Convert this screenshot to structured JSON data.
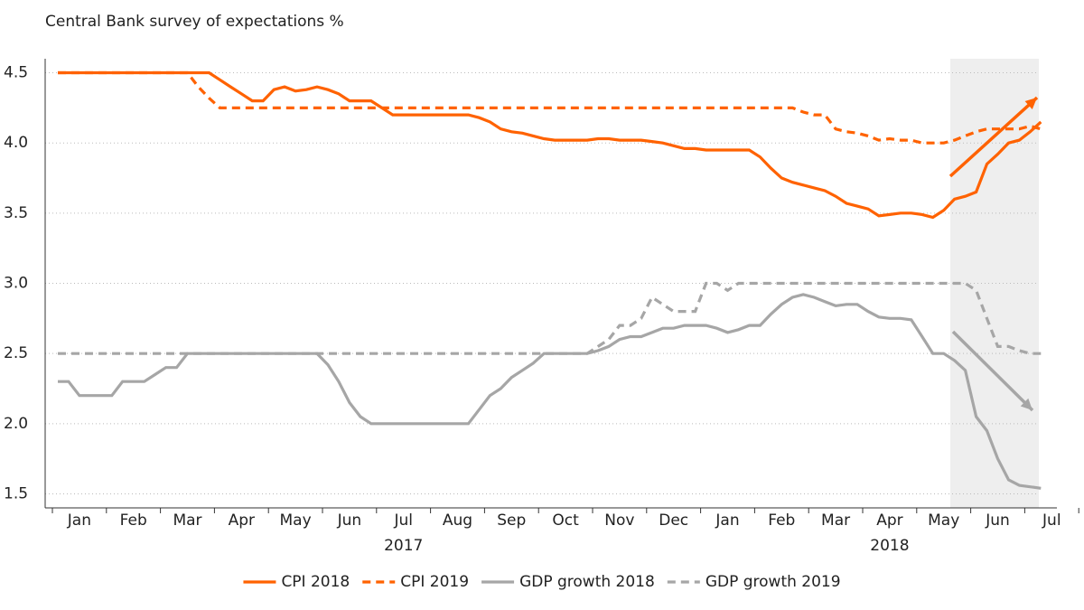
{
  "chart_data": {
    "type": "line",
    "title": "Central Bank survey of expectations %",
    "categories": [
      null,
      null,
      "Jan",
      null,
      null,
      null,
      null,
      "Feb",
      null,
      null,
      null,
      null,
      "Mar",
      null,
      null,
      null,
      null,
      "Apr",
      null,
      null,
      null,
      null,
      "May",
      null,
      null,
      null,
      null,
      "Jun",
      null,
      null,
      null,
      null,
      "Jul",
      null,
      null,
      null,
      null,
      "Aug",
      null,
      null,
      null,
      null,
      "Sep",
      null,
      null,
      null,
      null,
      "Oct",
      null,
      null,
      null,
      null,
      "Nov",
      null,
      null,
      null,
      null,
      "Dec",
      null,
      null,
      null,
      null,
      "Jan",
      null,
      null,
      null,
      null,
      "Feb",
      null,
      null,
      null,
      null,
      "Mar",
      null,
      null,
      null,
      null,
      "Apr",
      null,
      null,
      null,
      null,
      "May",
      null,
      null,
      null,
      null,
      "Jun",
      null,
      null,
      null,
      null,
      "Jul",
      null,
      null
    ],
    "x_group_labels": [
      "2017",
      "2018"
    ],
    "series": [
      {
        "name": "CPI 2018",
        "color": "#ff6200",
        "dash": false,
        "values": [
          4.5,
          4.5,
          4.5,
          4.5,
          4.5,
          4.5,
          4.5,
          4.5,
          4.5,
          4.5,
          4.5,
          4.5,
          4.5,
          4.5,
          4.5,
          4.45,
          4.4,
          4.35,
          4.3,
          4.3,
          4.38,
          4.4,
          4.37,
          4.38,
          4.4,
          4.38,
          4.35,
          4.3,
          4.3,
          4.3,
          4.25,
          4.2,
          4.2,
          4.2,
          4.2,
          4.2,
          4.2,
          4.2,
          4.2,
          4.18,
          4.15,
          4.1,
          4.08,
          4.07,
          4.05,
          4.03,
          4.02,
          4.02,
          4.02,
          4.02,
          4.03,
          4.03,
          4.02,
          4.02,
          4.02,
          4.01,
          4.0,
          3.98,
          3.96,
          3.96,
          3.95,
          3.95,
          3.95,
          3.95,
          3.95,
          3.9,
          3.82,
          3.75,
          3.72,
          3.7,
          3.68,
          3.66,
          3.62,
          3.57,
          3.55,
          3.53,
          3.48,
          3.49,
          3.5,
          3.5,
          3.49,
          3.47,
          3.52,
          3.6,
          3.62,
          3.65,
          3.85,
          3.92,
          4.0,
          4.02,
          4.08,
          4.15,
          null,
          null,
          null
        ]
      },
      {
        "name": "CPI 2019",
        "color": "#ff6200",
        "dash": true,
        "values": [
          4.5,
          4.5,
          4.5,
          4.5,
          4.5,
          4.5,
          4.5,
          4.5,
          4.5,
          4.5,
          4.5,
          4.5,
          4.5,
          4.4,
          4.32,
          4.25,
          4.25,
          4.25,
          4.25,
          4.25,
          4.25,
          4.25,
          4.25,
          4.25,
          4.25,
          4.25,
          4.25,
          4.25,
          4.25,
          4.25,
          4.25,
          4.25,
          4.25,
          4.25,
          4.25,
          4.25,
          4.25,
          4.25,
          4.25,
          4.25,
          4.25,
          4.25,
          4.25,
          4.25,
          4.25,
          4.25,
          4.25,
          4.25,
          4.25,
          4.25,
          4.25,
          4.25,
          4.25,
          4.25,
          4.25,
          4.25,
          4.25,
          4.25,
          4.25,
          4.25,
          4.25,
          4.25,
          4.25,
          4.25,
          4.25,
          4.25,
          4.25,
          4.25,
          4.25,
          4.22,
          4.2,
          4.2,
          4.1,
          4.08,
          4.07,
          4.05,
          4.02,
          4.03,
          4.02,
          4.02,
          4.0,
          4.0,
          4.0,
          4.02,
          4.05,
          4.08,
          4.1,
          4.1,
          4.1,
          4.1,
          4.12,
          4.1,
          null,
          null,
          null
        ]
      },
      {
        "name": "GDP growth 2018",
        "color": "#a6a6a6",
        "dash": false,
        "values": [
          2.3,
          2.3,
          2.2,
          2.2,
          2.2,
          2.2,
          2.3,
          2.3,
          2.3,
          2.35,
          2.4,
          2.4,
          2.5,
          2.5,
          2.5,
          2.5,
          2.5,
          2.5,
          2.5,
          2.5,
          2.5,
          2.5,
          2.5,
          2.5,
          2.5,
          2.42,
          2.3,
          2.15,
          2.05,
          2.0,
          2.0,
          2.0,
          2.0,
          2.0,
          2.0,
          2.0,
          2.0,
          2.0,
          2.0,
          2.1,
          2.2,
          2.25,
          2.33,
          2.38,
          2.43,
          2.5,
          2.5,
          2.5,
          2.5,
          2.5,
          2.52,
          2.55,
          2.6,
          2.62,
          2.62,
          2.65,
          2.68,
          2.68,
          2.7,
          2.7,
          2.7,
          2.68,
          2.65,
          2.67,
          2.7,
          2.7,
          2.78,
          2.85,
          2.9,
          2.92,
          2.9,
          2.87,
          2.84,
          2.85,
          2.85,
          2.8,
          2.76,
          2.75,
          2.75,
          2.74,
          2.62,
          2.5,
          2.5,
          2.45,
          2.38,
          2.05,
          1.95,
          1.75,
          1.6,
          1.56,
          1.55,
          1.54,
          null,
          null,
          null
        ]
      },
      {
        "name": "GDP growth 2019",
        "color": "#a6a6a6",
        "dash": true,
        "values": [
          2.5,
          2.5,
          2.5,
          2.5,
          2.5,
          2.5,
          2.5,
          2.5,
          2.5,
          2.5,
          2.5,
          2.5,
          2.5,
          2.5,
          2.5,
          2.5,
          2.5,
          2.5,
          2.5,
          2.5,
          2.5,
          2.5,
          2.5,
          2.5,
          2.5,
          2.5,
          2.5,
          2.5,
          2.5,
          2.5,
          2.5,
          2.5,
          2.5,
          2.5,
          2.5,
          2.5,
          2.5,
          2.5,
          2.5,
          2.5,
          2.5,
          2.5,
          2.5,
          2.5,
          2.5,
          2.5,
          2.5,
          2.5,
          2.5,
          2.5,
          2.55,
          2.6,
          2.7,
          2.7,
          2.75,
          2.9,
          2.85,
          2.8,
          2.8,
          2.8,
          3.0,
          3.0,
          2.95,
          3.0,
          3.0,
          3.0,
          3.0,
          3.0,
          3.0,
          3.0,
          3.0,
          3.0,
          3.0,
          3.0,
          3.0,
          3.0,
          3.0,
          3.0,
          3.0,
          3.0,
          3.0,
          3.0,
          3.0,
          3.0,
          3.0,
          2.95,
          2.75,
          2.55,
          2.55,
          2.52,
          2.5,
          2.5,
          null,
          null,
          null
        ]
      }
    ],
    "ylim": [
      1.4,
      4.6
    ],
    "yticks": [
      1.5,
      {
        "value": 2,
        "label": "2.0"
      },
      2.5,
      {
        "value": 3,
        "label": "3.0"
      },
      3.5,
      {
        "value": 4,
        "label": "4.0"
      },
      4.5
    ],
    "grid": true,
    "legend": "bottom"
  }
}
